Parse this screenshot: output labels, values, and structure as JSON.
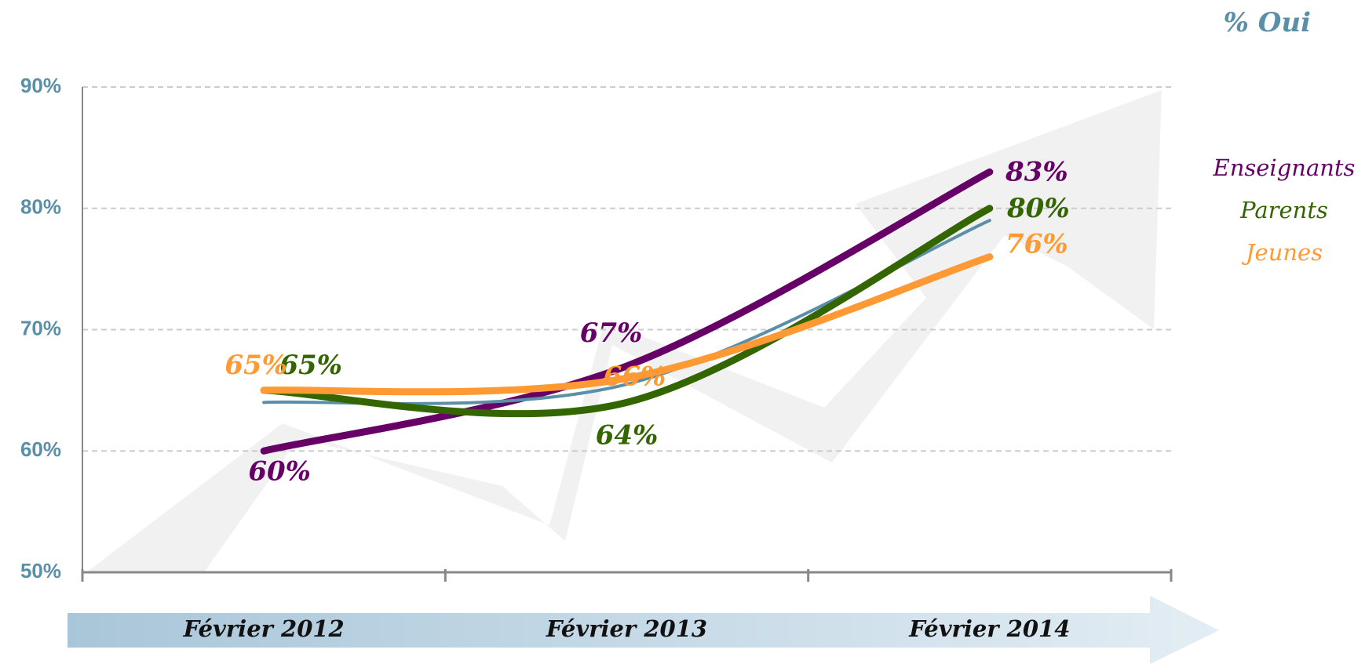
{
  "chart_data": {
    "type": "line",
    "title": "% Oui",
    "categories": [
      "Février 2012",
      "Février 2013",
      "Février 2014"
    ],
    "series": [
      {
        "name": "Enseignants",
        "color": "#660066",
        "values": [
          60,
          67,
          83
        ],
        "value_labels": [
          "60%",
          "67%",
          "83%"
        ]
      },
      {
        "color": "#5b8fa8",
        "values": [
          64,
          65.5,
          79
        ]
      },
      {
        "name": "Parents",
        "color": "#336600",
        "values": [
          65,
          64,
          80
        ],
        "value_labels": [
          "65%",
          "64%",
          "80%"
        ]
      },
      {
        "name": "Jeunes",
        "color": "#ff9933",
        "values": [
          65,
          66,
          76
        ],
        "value_labels": [
          "65%",
          "66%",
          "76%"
        ]
      }
    ],
    "ylim": [
      50,
      90
    ],
    "yticks": [
      {
        "value": 50,
        "label": "50%"
      },
      {
        "value": 60,
        "label": "60%"
      },
      {
        "value": 70,
        "label": "70%"
      },
      {
        "value": 80,
        "label": "80%"
      },
      {
        "value": 90,
        "label": "90%"
      }
    ],
    "grid": true
  }
}
